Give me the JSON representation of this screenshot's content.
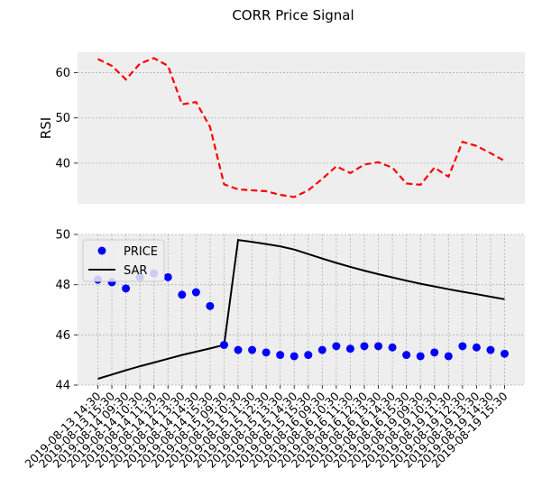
{
  "title": "CORR Price Signal",
  "colors": {
    "panel_bg": "#eeeeee",
    "grid": "#b0b0b0",
    "rsi": "#ff0000",
    "price": "#0000ff",
    "sar": "#000000"
  },
  "chart_data": [
    {
      "type": "line",
      "ylabel": "RSI",
      "ylim": [
        31,
        64.5
      ],
      "yticks": [
        40,
        50,
        60
      ],
      "grid": true,
      "series": [
        {
          "name": "",
          "style": "dashed",
          "values": [
            63.0,
            61.5,
            58.5,
            62.0,
            63.2,
            61.5,
            53.0,
            53.5,
            48.0,
            35.3,
            34.2,
            34.0,
            33.8,
            33.0,
            32.5,
            34.0,
            36.5,
            39.3,
            37.8,
            39.7,
            40.2,
            39.0,
            35.5,
            35.2,
            39.0,
            37.0,
            44.7,
            43.8,
            42.2,
            40.5
          ]
        }
      ]
    },
    {
      "type": "scatter",
      "ylim": [
        44,
        50
      ],
      "yticks": [
        44,
        46,
        48,
        50
      ],
      "grid": true,
      "legend": "upper-left",
      "x": [
        "2019-08-13 14:30",
        "2019-08-13 15:30",
        "2019-08-14 09:30",
        "2019-08-14 10:30",
        "2019-08-14 11:30",
        "2019-08-14 12:30",
        "2019-08-14 13:30",
        "2019-08-14 14:30",
        "2019-08-14 15:30",
        "2019-08-15 09:30",
        "2019-08-15 10:30",
        "2019-08-15 11:30",
        "2019-08-15 12:30",
        "2019-08-15 13:30",
        "2019-08-15 14:30",
        "2019-08-15 15:30",
        "2019-08-16 09:30",
        "2019-08-16 10:30",
        "2019-08-16 11:30",
        "2019-08-16 12:30",
        "2019-08-16 13:30",
        "2019-08-16 14:30",
        "2019-08-16 15:30",
        "2019-08-19 09:30",
        "2019-08-19 10:30",
        "2019-08-19 11:30",
        "2019-08-19 12:30",
        "2019-08-19 13:30",
        "2019-08-19 14:30",
        "2019-08-19 15:30"
      ],
      "series": [
        {
          "name": "PRICE",
          "marker": "circle",
          "values": [
            48.2,
            48.1,
            47.85,
            48.3,
            48.45,
            48.3,
            47.6,
            47.7,
            47.15,
            45.6,
            45.4,
            45.4,
            45.3,
            45.2,
            45.15,
            45.2,
            45.4,
            45.55,
            45.45,
            45.55,
            45.55,
            45.5,
            45.2,
            45.15,
            45.3,
            45.15,
            45.55,
            45.5,
            45.4,
            45.25
          ]
        },
        {
          "name": "SAR",
          "style": "solid",
          "values": [
            44.25,
            44.42,
            44.59,
            44.75,
            44.9,
            45.05,
            45.2,
            45.33,
            45.46,
            45.6,
            49.78,
            49.7,
            49.62,
            49.53,
            49.4,
            49.22,
            49.04,
            48.87,
            48.71,
            48.56,
            48.42,
            48.29,
            48.16,
            48.04,
            47.93,
            47.82,
            47.72,
            47.62,
            47.52,
            47.42
          ]
        }
      ]
    }
  ]
}
